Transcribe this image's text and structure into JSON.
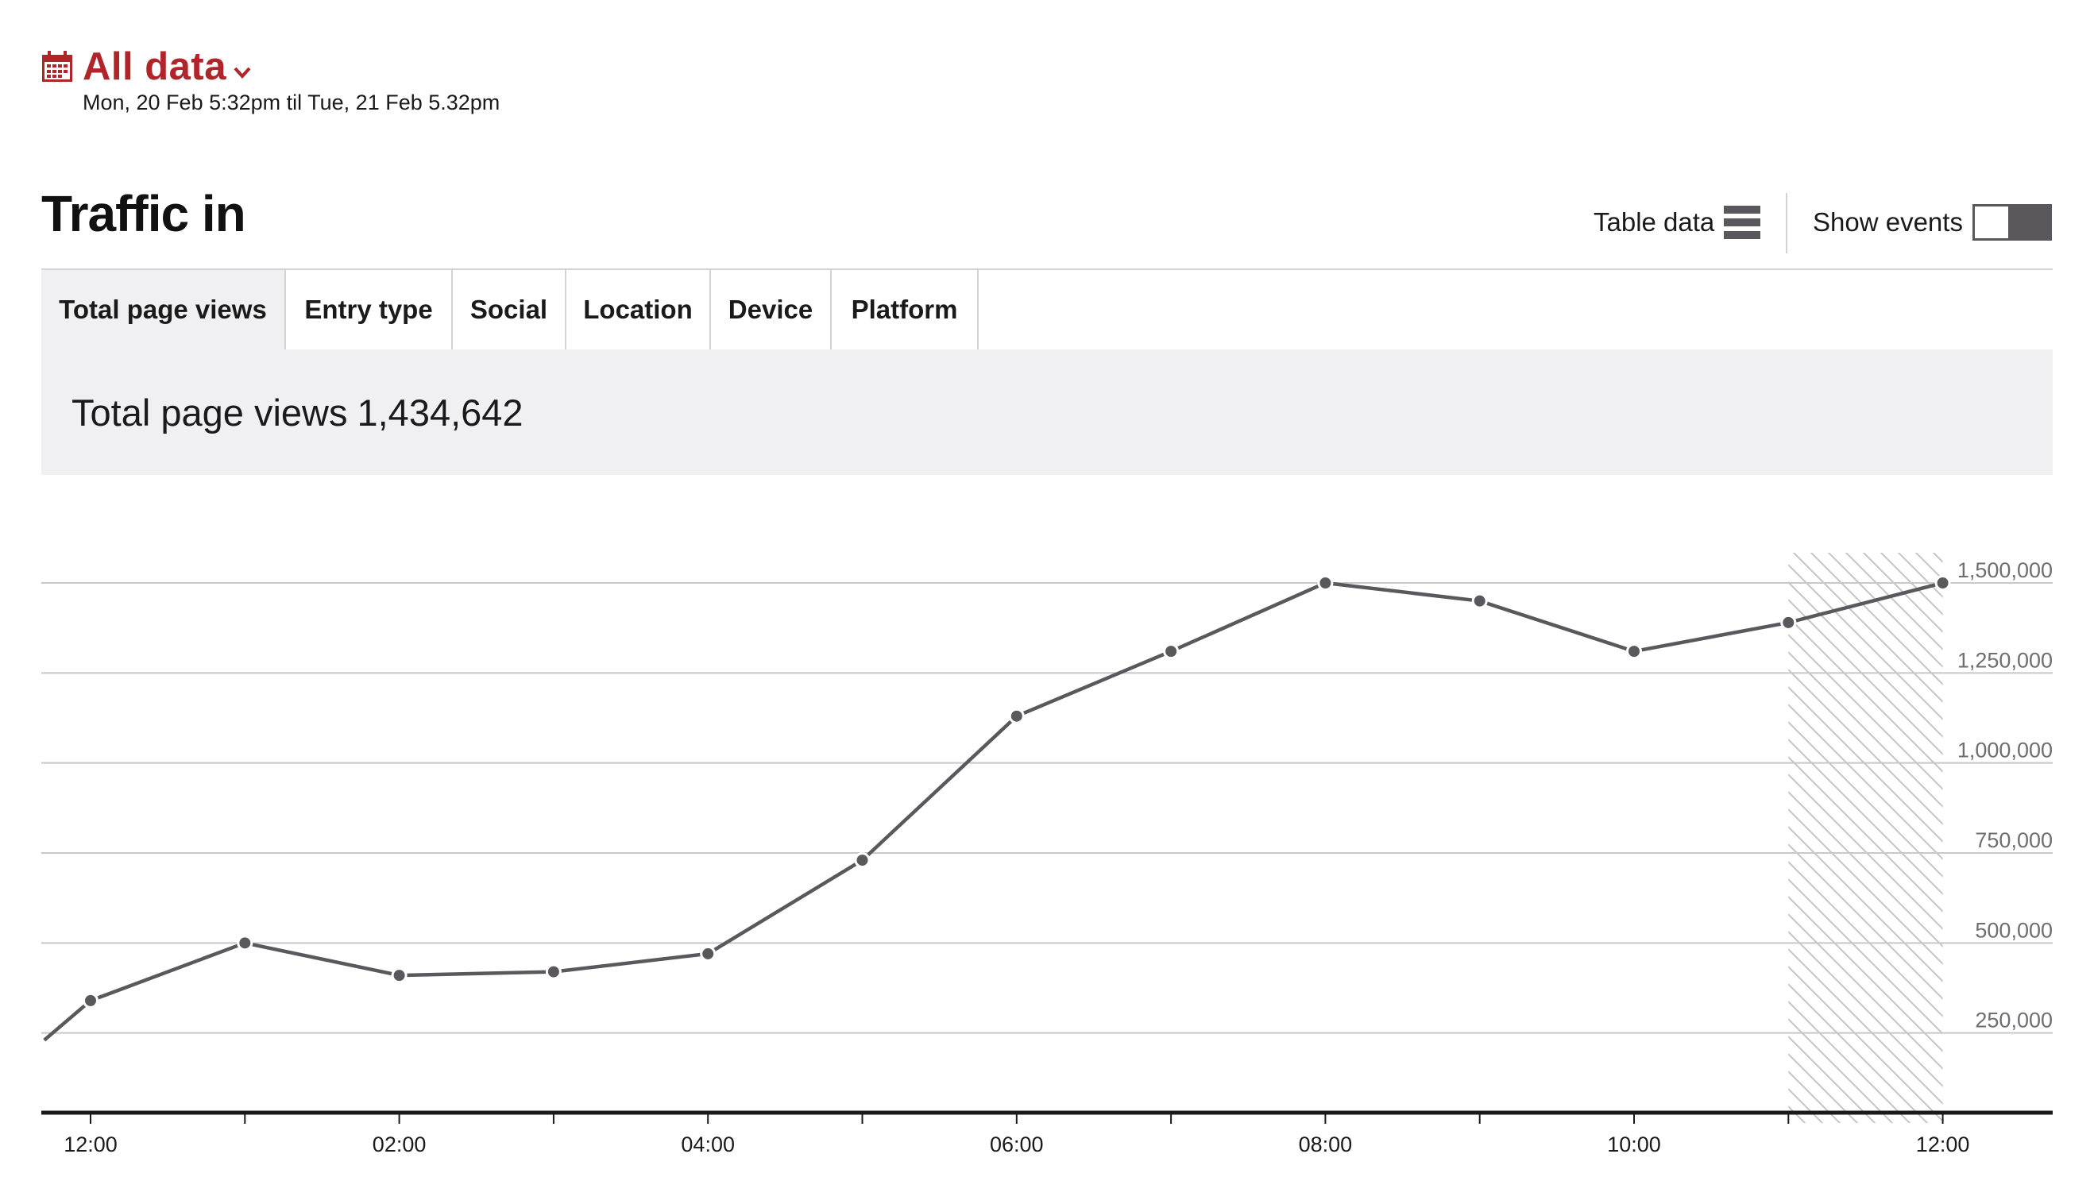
{
  "date_selector": {
    "title": "All data",
    "range": "Mon, 20 Feb 5:32pm til Tue, 21 Feb 5.32pm",
    "icon": "calendar-icon",
    "dropdown_icon": "chevron-down-icon",
    "accent_color": "#b0252a"
  },
  "section": {
    "title": "Traffic in",
    "table_data_label": "Table data",
    "table_icon": "table-list-icon",
    "show_events_label": "Show events",
    "show_events_on": false
  },
  "tabs": [
    {
      "label": "Total page views",
      "active": true
    },
    {
      "label": "Entry type",
      "active": false
    },
    {
      "label": "Social",
      "active": false
    },
    {
      "label": "Location",
      "active": false
    },
    {
      "label": "Device",
      "active": false
    },
    {
      "label": "Platform",
      "active": false
    }
  ],
  "summary": {
    "label": "Total page views",
    "value": "1,434,642"
  },
  "chart_data": {
    "type": "line",
    "title": "",
    "xlabel": "",
    "ylabel": "",
    "x_ticks": [
      "12:00",
      "02:00",
      "04:00",
      "06:00",
      "08:00",
      "10:00",
      "12:00"
    ],
    "y_ticks": [
      "250,000",
      "500,000",
      "750,000",
      "1,000,000",
      "1,250,000",
      "1,500,000"
    ],
    "ylim": [
      0,
      1500000
    ],
    "axis_position": "right",
    "grid": true,
    "line_color": "#5a585d",
    "x": [
      "11:42",
      "12:00",
      "01:00",
      "02:00",
      "03:00",
      "04:00",
      "05:00",
      "06:00",
      "07:00",
      "08:00",
      "09:00",
      "10:00",
      "11:00",
      "12:00"
    ],
    "values": [
      230000,
      340000,
      500000,
      410000,
      420000,
      470000,
      730000,
      1130000,
      1310000,
      1500000,
      1450000,
      1310000,
      1390000,
      1500000
    ],
    "shaded_region": {
      "from": "11:00",
      "to": "12:00",
      "pattern": "diagonal-hatch"
    }
  }
}
